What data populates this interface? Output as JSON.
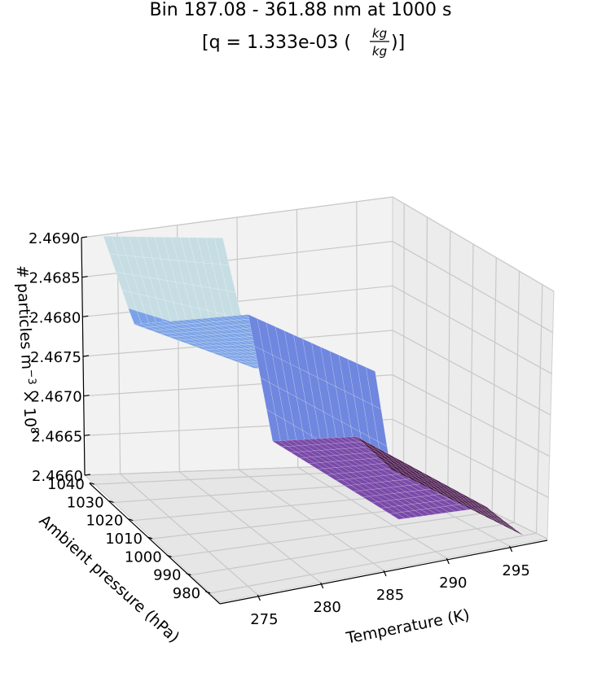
{
  "title": {
    "line1": "Bin 187.08 - 361.88 nm at 1000 s",
    "line2_prefix": "[q = 1.333e-03 (",
    "frac_num": "kg",
    "frac_den": "kg",
    "line2_suffix": ")]"
  },
  "chart_data": {
    "type": "surface3d",
    "x": {
      "label": "Temperature (K)",
      "ticks": [
        275,
        280,
        285,
        290,
        295
      ],
      "range": [
        272,
        298
      ]
    },
    "y": {
      "label": "Ambient pressure (hPa)",
      "ticks": [
        980,
        990,
        1000,
        1010,
        1020,
        1030,
        1040
      ],
      "range": [
        975,
        1045
      ]
    },
    "z": {
      "label_prefix": "# particles m",
      "label_exp": "−3",
      "label_mid": " × 10",
      "label_exp2": "8",
      "ticks": [
        "2.4660",
        "2.4665",
        "2.4670",
        "2.4675",
        "2.4680",
        "2.4685",
        "2.4690"
      ],
      "range": [
        2.466,
        2.469
      ]
    },
    "colormap": "twilight",
    "surface_levels": [
      {
        "t_range": [
          273,
          275
        ],
        "value_range": [
          2.4681,
          2.469
        ],
        "color": "#c6dde3"
      },
      {
        "t_range": [
          275,
          285
        ],
        "value": 2.4679,
        "color": "#7ba2e6"
      },
      {
        "t_range": [
          285,
          287
        ],
        "value_range": [
          2.4664,
          2.4679
        ],
        "color": "#6f87de"
      },
      {
        "t_range": [
          287,
          294
        ],
        "value": 2.4664,
        "color": "#7a4aa8"
      },
      {
        "t_range": [
          294,
          297
        ],
        "value_range": [
          2.466,
          2.4664
        ],
        "color": "#4a1c4c"
      }
    ]
  }
}
